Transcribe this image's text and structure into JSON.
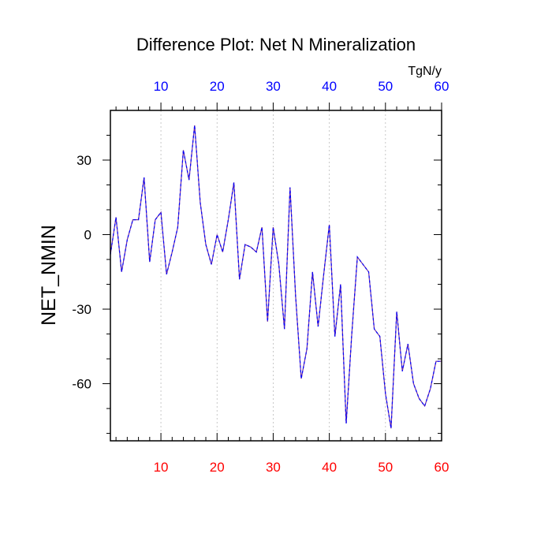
{
  "chart_data": {
    "type": "line",
    "title": "Difference Plot: Net N Mineralization",
    "ylabel": "NET_NMIN",
    "units": "TgN/y",
    "xlim": [
      1,
      60
    ],
    "ylim": [
      -83,
      50
    ],
    "x_ticks": [
      10,
      20,
      30,
      40,
      50,
      60
    ],
    "y_ticks": [
      30,
      0,
      -30,
      -60
    ],
    "x_tick_labels": [
      "10",
      "20",
      "30",
      "40",
      "50",
      "60"
    ],
    "y_tick_labels": [
      "30",
      "0",
      "-30",
      "-60"
    ],
    "grid": "vertical-dashed",
    "colors": {
      "bottom_ticks": "#ff0000",
      "top_ticks": "#0000ff",
      "line": "#7030a0",
      "line_dash": "#0000ff",
      "grid": "#bbbbbb"
    },
    "series": [
      {
        "x": [
          1,
          2,
          3,
          4,
          5,
          6,
          7,
          8,
          9,
          10,
          11,
          12,
          13,
          14,
          15,
          16,
          17,
          18,
          19,
          20,
          21,
          22,
          23,
          24,
          25,
          26,
          27,
          28,
          29,
          30,
          31,
          32,
          33,
          34,
          35,
          36,
          37,
          38,
          39,
          40,
          41,
          42,
          43,
          44,
          45,
          46,
          47,
          48,
          49,
          50,
          51,
          52,
          53,
          54,
          55,
          56,
          57,
          58,
          59,
          60
        ],
        "y": [
          -8,
          7,
          -15,
          -2,
          6,
          6,
          23,
          -11,
          6,
          9,
          -16,
          -7,
          3,
          34,
          22,
          44,
          13,
          -4,
          -12,
          0,
          -7,
          6,
          21,
          -18,
          -4,
          -5,
          -7,
          3,
          -35,
          3,
          -12,
          -38,
          19,
          -25,
          -58,
          -46,
          -15,
          -37,
          -16,
          4,
          -41,
          -20,
          -76,
          -40,
          -9,
          -12,
          -15,
          -38,
          -41,
          -64,
          -78,
          -31,
          -55,
          -44,
          -60,
          -66,
          -69,
          -62,
          -51,
          -51
        ]
      }
    ]
  }
}
